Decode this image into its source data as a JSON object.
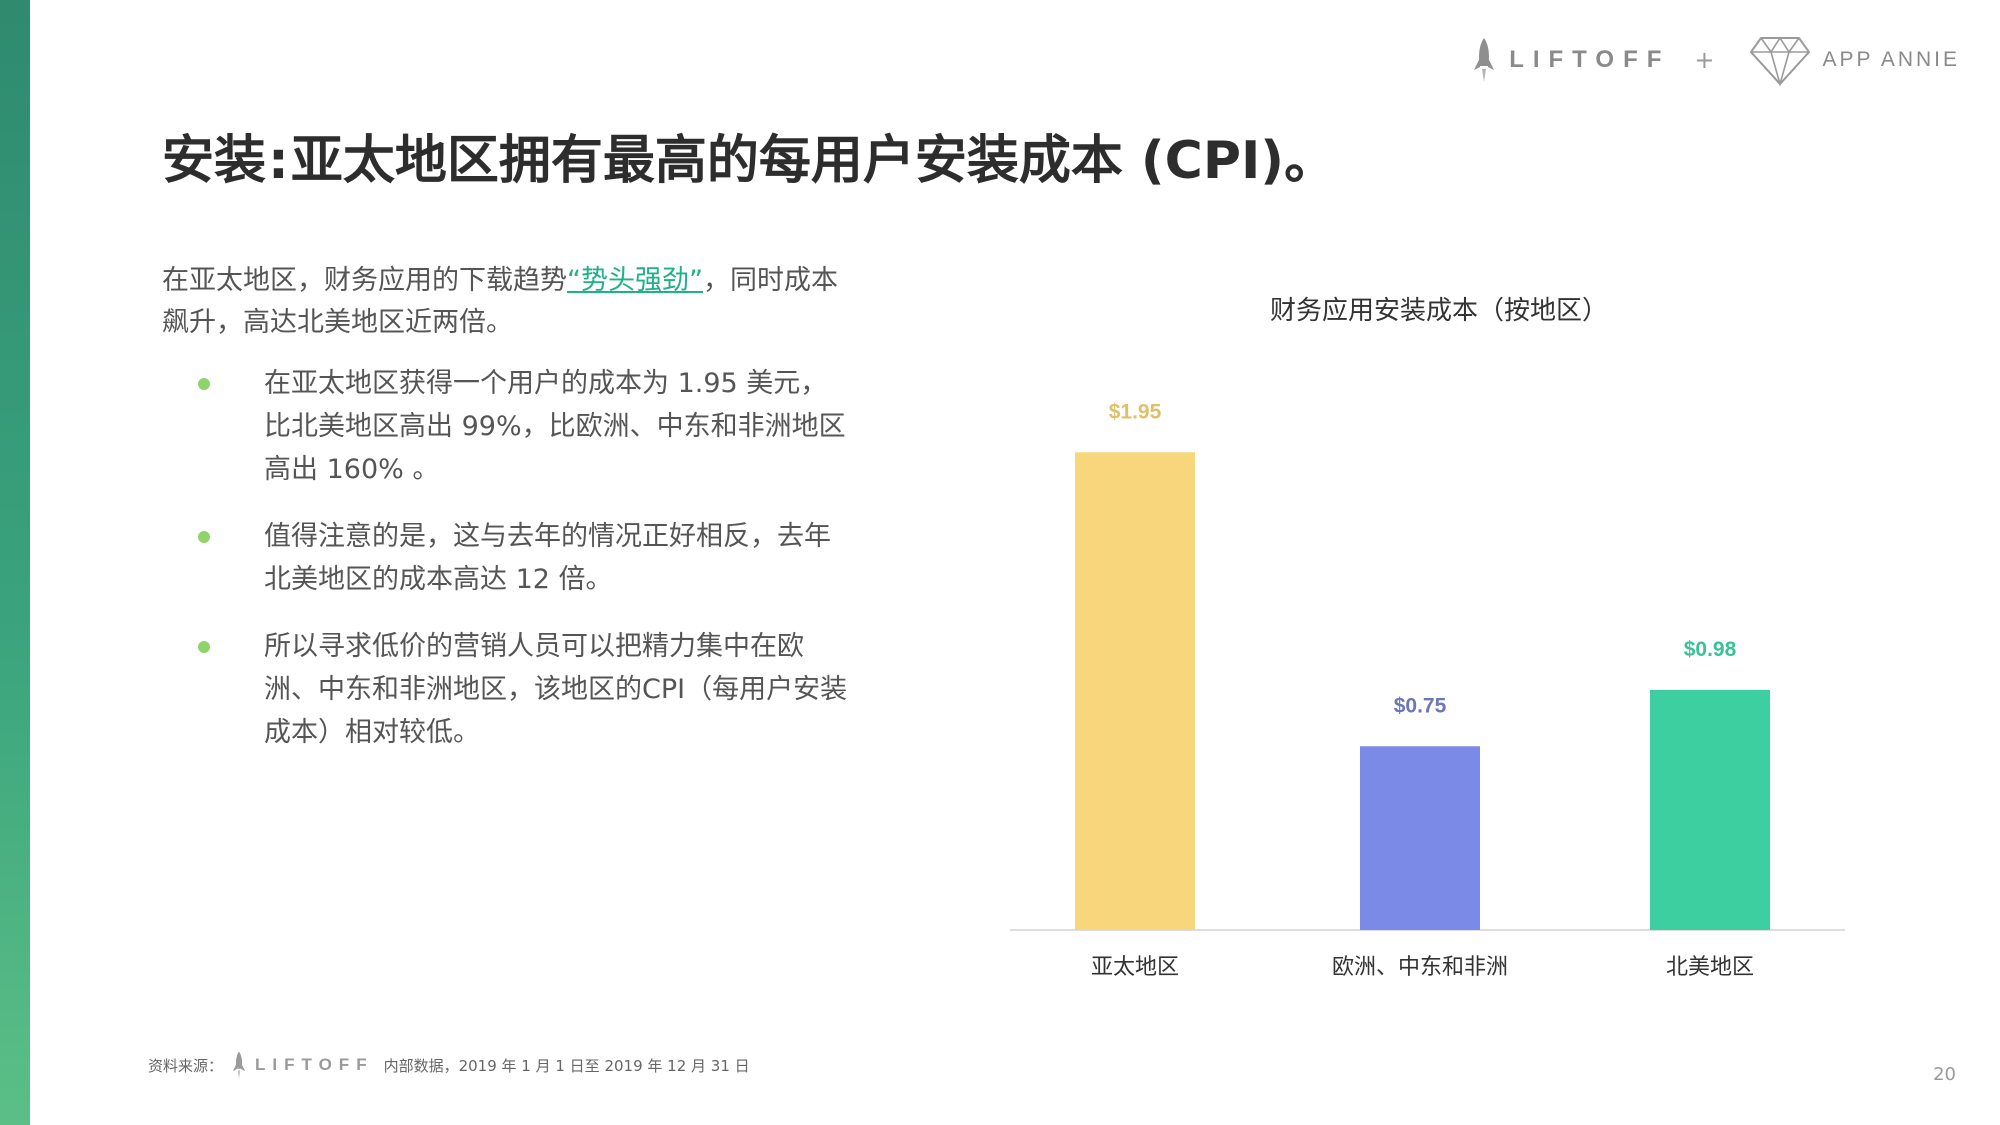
{
  "header": {
    "brand_left": "LIFTOFF",
    "plus": "+",
    "brand_right": "APP ANNIE",
    "icons": [
      "rocket-icon",
      "diamond-icon"
    ]
  },
  "title": {
    "part1": "安装",
    "separator": ":",
    "part2": "亚太地区拥有最高的每用户安装成本 (CPI)。"
  },
  "intro": {
    "before_link": "在亚太地区，财务应用的下载趋势",
    "link": "“势头强劲”",
    "after_link": "，同时成本飙升，高达北美地区近两倍。"
  },
  "bullets": [
    "在亚太地区获得一个用户的成本为 1.95 美元，比北美地区高出 99%，比欧洲、中东和非洲地区高出 160% 。",
    "值得注意的是，这与去年的情况正好相反，去年北美地区的成本高达 12 倍。",
    "所以寻求低价的营销人员可以把精力集中在欧洲、中东和非洲地区，该地区的CPI（每用户安装成本）相对较低。"
  ],
  "chart_data": {
    "type": "bar",
    "title": "财务应用安装成本（按地区）",
    "categories": [
      "亚太地区",
      "欧洲、中东和非洲",
      "北美地区"
    ],
    "values": [
      1.95,
      0.75,
      0.98
    ],
    "data_labels": [
      "$1.95",
      "$0.75",
      "$0.98"
    ],
    "colors": [
      "#f8d77c",
      "#7b8ae6",
      "#3ecfa0"
    ],
    "label_colors": [
      "#e0bf6a",
      "#6b77b8",
      "#3cc196"
    ],
    "xlabel": "",
    "ylabel": "",
    "ylim": [
      0,
      2.0
    ],
    "grid": false,
    "legend": "none"
  },
  "footer": {
    "source_label": "资料来源：",
    "brand": "LIFTOFF",
    "source_text": "内部数据，2019 年 1 月 1 日至 2019 年 12 月 31 日"
  },
  "page_number": "20"
}
